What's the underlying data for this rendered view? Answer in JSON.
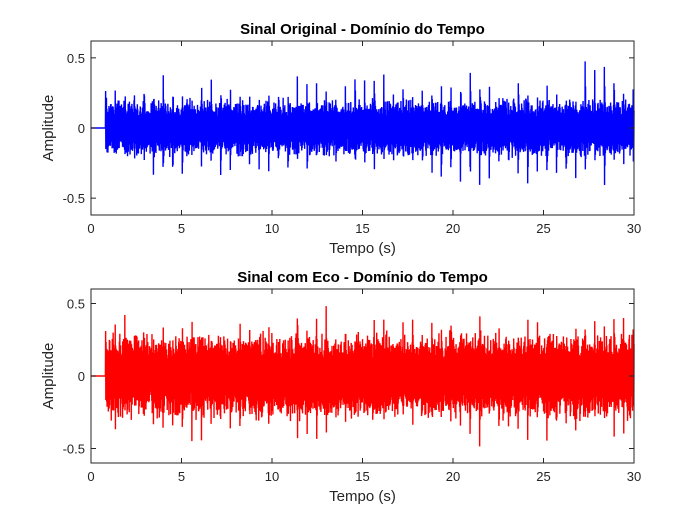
{
  "chart_data": [
    {
      "type": "line",
      "title": "Sinal Original - Domínio do Tempo",
      "xlabel": "Tempo (s)",
      "ylabel": "Amplitude",
      "xlim": [
        0,
        30
      ],
      "ylim": [
        -0.62,
        0.62
      ],
      "xticks": [
        "0",
        "5",
        "10",
        "15",
        "20",
        "25",
        "30"
      ],
      "yticks": [
        "-0.5",
        "0",
        "0.5"
      ],
      "grid": false,
      "color": "#0000ff",
      "signal": {
        "silent_until_s": 0.8,
        "beat_period_s": 0.53,
        "peak_amplitude": 0.62,
        "typical_peak": 0.45,
        "body_amplitude": 0.22,
        "seed": 7
      }
    },
    {
      "type": "line",
      "title": "Sinal com Eco - Domínio do Tempo",
      "xlabel": "Tempo (s)",
      "ylabel": "Amplitude",
      "xlim": [
        0,
        30
      ],
      "ylim": [
        -0.6,
        0.6
      ],
      "xticks": [
        "0",
        "5",
        "10",
        "15",
        "20",
        "25",
        "30"
      ],
      "yticks": [
        "-0.5",
        "0",
        "0.5"
      ],
      "grid": false,
      "color": "#ff0000",
      "signal": {
        "silent_until_s": 0.8,
        "beat_period_s": 0.53,
        "peak_amplitude": 0.6,
        "typical_peak": 0.5,
        "body_amplitude": 0.32,
        "seed": 13
      }
    }
  ]
}
